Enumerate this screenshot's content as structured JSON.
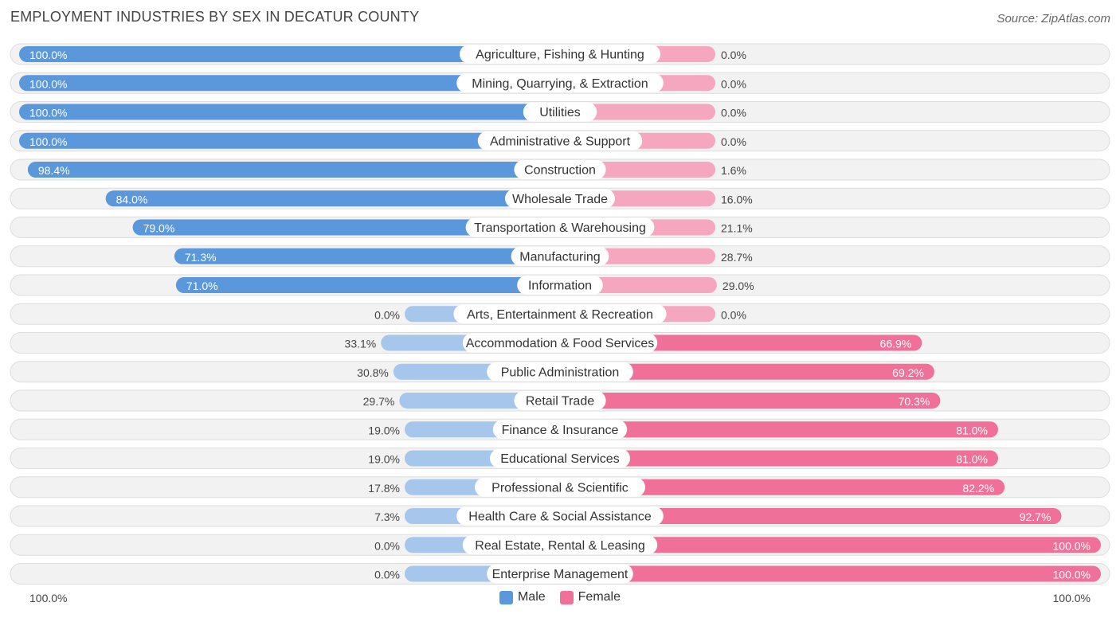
{
  "title": "EMPLOYMENT INDUSTRIES BY SEX IN DECATUR COUNTY",
  "source": "Source: ZipAtlas.com",
  "colors": {
    "male_strong": "#5b97db",
    "male_light": "#a6c6ec",
    "female_strong": "#f0709a",
    "female_light": "#f6a7c0",
    "row_bg": "#f2f2f2",
    "row_border": "#dddddd"
  },
  "legend": {
    "male": "Male",
    "female": "Female"
  },
  "axis": {
    "left_label": "100.0%",
    "right_label": "100.0%"
  },
  "chart_data": {
    "type": "bar",
    "orientation": "horizontal-diverging",
    "title": "EMPLOYMENT INDUSTRIES BY SEX IN DECATUR COUNTY",
    "xlim": [
      -100,
      100
    ],
    "categories": [
      "Agriculture, Fishing & Hunting",
      "Mining, Quarrying, & Extraction",
      "Utilities",
      "Administrative & Support",
      "Construction",
      "Wholesale Trade",
      "Transportation & Warehousing",
      "Manufacturing",
      "Information",
      "Arts, Entertainment & Recreation",
      "Accommodation & Food Services",
      "Public Administration",
      "Retail Trade",
      "Finance & Insurance",
      "Educational Services",
      "Professional & Scientific",
      "Health Care & Social Assistance",
      "Real Estate, Rental & Leasing",
      "Enterprise Management"
    ],
    "series": [
      {
        "name": "Male",
        "values": [
          100.0,
          100.0,
          100.0,
          100.0,
          98.4,
          84.0,
          79.0,
          71.3,
          71.0,
          0.0,
          33.1,
          30.8,
          29.7,
          19.0,
          19.0,
          17.8,
          7.3,
          0.0,
          0.0
        ],
        "labels": [
          "100.0%",
          "100.0%",
          "100.0%",
          "100.0%",
          "98.4%",
          "84.0%",
          "79.0%",
          "71.3%",
          "71.0%",
          "0.0%",
          "33.1%",
          "30.8%",
          "29.7%",
          "19.0%",
          "19.0%",
          "17.8%",
          "7.3%",
          "0.0%",
          "0.0%"
        ]
      },
      {
        "name": "Female",
        "values": [
          0.0,
          0.0,
          0.0,
          0.0,
          1.6,
          16.0,
          21.1,
          28.7,
          29.0,
          0.0,
          66.9,
          69.2,
          70.3,
          81.0,
          81.0,
          82.2,
          92.7,
          100.0,
          100.0
        ],
        "labels": [
          "0.0%",
          "0.0%",
          "0.0%",
          "0.0%",
          "1.6%",
          "16.0%",
          "21.1%",
          "28.7%",
          "29.0%",
          "0.0%",
          "66.9%",
          "69.2%",
          "70.3%",
          "81.0%",
          "81.0%",
          "82.2%",
          "92.7%",
          "100.0%",
          "100.0%"
        ]
      }
    ],
    "xlabel": "",
    "ylabel": "",
    "legend_position": "bottom-center"
  }
}
